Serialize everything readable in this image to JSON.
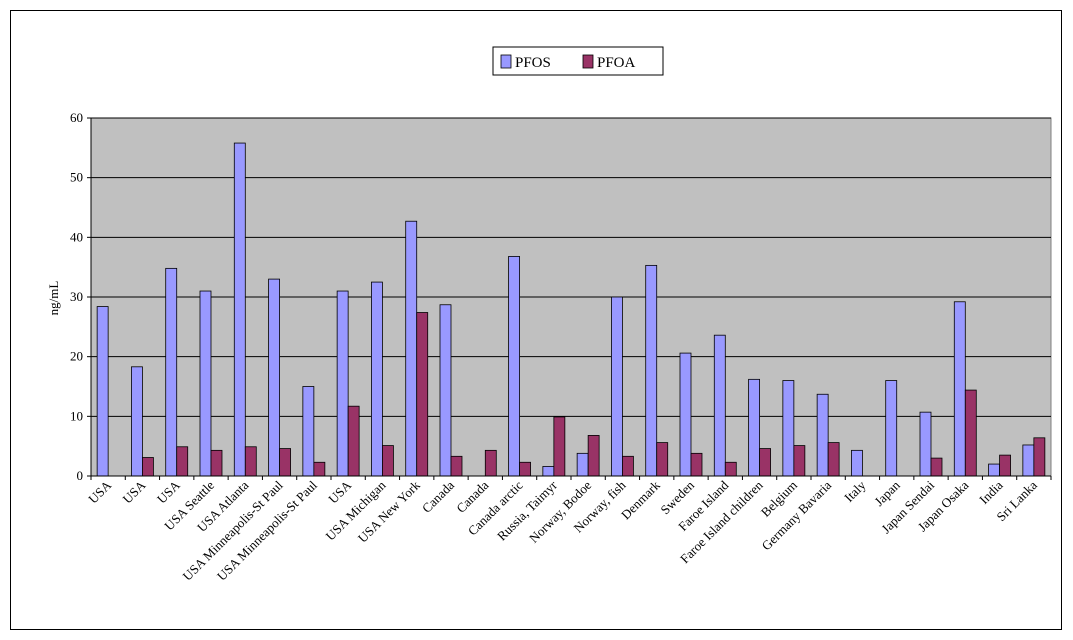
{
  "chart_data": {
    "type": "bar",
    "ylabel": "ng/mL",
    "ylim": [
      0,
      60
    ],
    "yticks": [
      0,
      10,
      20,
      30,
      40,
      50,
      60
    ],
    "grid": true,
    "legend_position": "top-center",
    "categories": [
      "USA",
      "USA",
      "USA",
      "USA Seattle",
      "USA Atlanta",
      "USA Minneapolis-St Paul",
      "USA Minneapolis-St Paul",
      "USA",
      "USA Michigan",
      "USA New York",
      "Canada",
      "Canada",
      "Canada arctic",
      "Russia, Taimyr",
      "Norway, Bodoe",
      "Norway, fish",
      "Denmark",
      "Sweden",
      "Faroe Island",
      "Faroe Island children",
      "Belgium",
      "Germany Bavaria",
      "Italy",
      "Japan",
      "Japan Sendai",
      "Japan Osaka",
      "India",
      "Sri Lanka"
    ],
    "series": [
      {
        "name": "PFOS",
        "color": "#9999ff",
        "values": [
          28.4,
          18.3,
          34.8,
          31.0,
          55.8,
          33.0,
          15.0,
          31.0,
          32.5,
          42.7,
          28.7,
          null,
          36.8,
          1.6,
          3.8,
          30.0,
          35.3,
          20.6,
          23.6,
          16.2,
          16.0,
          13.7,
          4.3,
          16.0,
          10.7,
          29.2,
          2.0,
          5.2
        ]
      },
      {
        "name": "PFOA",
        "color": "#993366",
        "values": [
          null,
          3.1,
          4.9,
          4.3,
          4.9,
          4.6,
          2.3,
          11.7,
          5.1,
          27.4,
          3.3,
          4.3,
          2.3,
          9.9,
          6.8,
          3.3,
          5.6,
          3.8,
          2.3,
          4.6,
          5.1,
          5.6,
          null,
          null,
          3.0,
          14.4,
          3.5,
          6.4
        ]
      }
    ]
  },
  "colors": {
    "plot_background": "#c0c0c0",
    "gridline": "#000000",
    "page_background": "#ffffff"
  }
}
